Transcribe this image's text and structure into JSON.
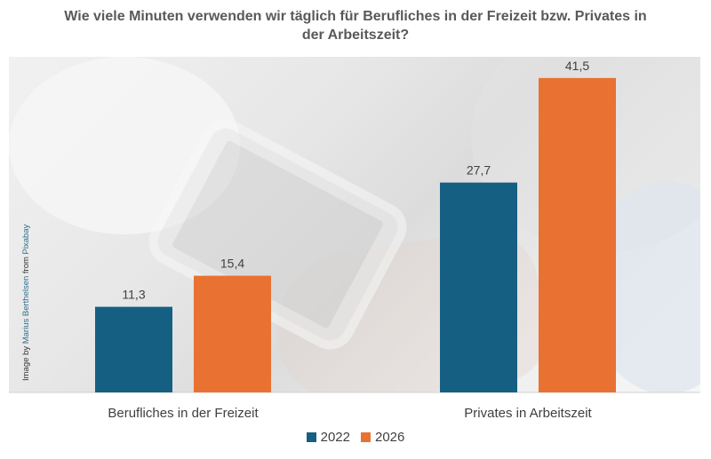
{
  "title": "Wie viele Minuten verwenden wir täglich für Berufliches in der Freizeit bzw. Privates in der Arbeitszeit?",
  "credit": {
    "prefix": "Image by ",
    "author": "Marius Berthelsen",
    "middle": " from ",
    "source": "Pixabay"
  },
  "colors": {
    "2022": "#156082",
    "2026": "#e97132"
  },
  "chart_data": {
    "type": "bar",
    "categories": [
      "Berufliches in der Freizeit",
      "Privates in Arbeitszeit"
    ],
    "series": [
      {
        "name": "2022",
        "values": [
          11.3,
          27.7
        ],
        "labels": [
          "11,3",
          "27,7"
        ]
      },
      {
        "name": "2026",
        "values": [
          15.4,
          41.5
        ],
        "labels": [
          "15,4",
          "41,5"
        ]
      }
    ],
    "ylim": [
      0,
      45
    ],
    "grid": false,
    "legend_position": "bottom"
  }
}
